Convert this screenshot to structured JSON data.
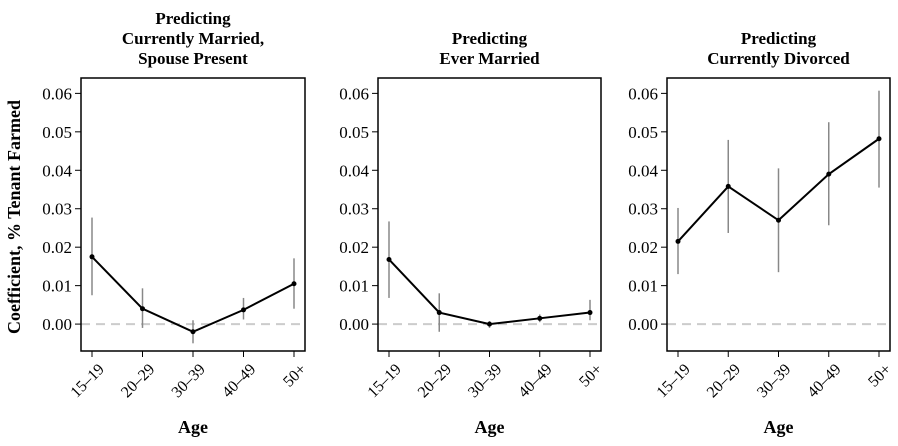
{
  "ylabel": "Coefficient, % Tenant Farmed",
  "chart_data": [
    {
      "type": "line",
      "title": [
        "Predicting",
        "Currently Married,",
        "Spouse Present"
      ],
      "xlabel": "Age",
      "categories": [
        "15–19",
        "20–29",
        "30–39",
        "40–49",
        "50+"
      ],
      "values": [
        0.0175,
        0.004,
        -0.002,
        0.0037,
        0.0105
      ],
      "ci_low": [
        0.0075,
        -0.001,
        -0.005,
        0.0012,
        0.004
      ],
      "ci_high": [
        0.0277,
        0.0093,
        0.001,
        0.0068,
        0.0171
      ],
      "ylim": [
        -0.007,
        0.064
      ],
      "yticks": [
        "0.00",
        "0.01",
        "0.02",
        "0.03",
        "0.04",
        "0.05",
        "0.06"
      ],
      "reference_line": 0,
      "reference_color": "#cccccc",
      "line_color": "#000000",
      "errorbar_color": "#888888"
    },
    {
      "type": "line",
      "title": [
        "Predicting",
        "Ever Married"
      ],
      "xlabel": "Age",
      "categories": [
        "15–19",
        "20–29",
        "30–39",
        "40–49",
        "50+"
      ],
      "values": [
        0.0168,
        0.003,
        0.0,
        0.0015,
        0.003
      ],
      "ci_low": [
        0.0068,
        -0.002,
        -0.001,
        0.0005,
        0.001
      ],
      "ci_high": [
        0.0267,
        0.008,
        0.0008,
        0.0025,
        0.0063
      ],
      "ylim": [
        -0.007,
        0.064
      ],
      "yticks": [
        "0.00",
        "0.01",
        "0.02",
        "0.03",
        "0.04",
        "0.05",
        "0.06"
      ],
      "reference_line": 0,
      "reference_color": "#cccccc",
      "line_color": "#000000",
      "errorbar_color": "#888888"
    },
    {
      "type": "line",
      "title": [
        "Predicting",
        "Currently Divorced"
      ],
      "xlabel": "Age",
      "categories": [
        "15–19",
        "20–29",
        "30–39",
        "40–49",
        "50+"
      ],
      "values": [
        0.0215,
        0.0358,
        0.027,
        0.039,
        0.0482
      ],
      "ci_low": [
        0.013,
        0.0237,
        0.0135,
        0.0257,
        0.0355
      ],
      "ci_high": [
        0.0302,
        0.0479,
        0.0405,
        0.0525,
        0.0607
      ],
      "ylim": [
        -0.007,
        0.064
      ],
      "yticks": [
        "0.00",
        "0.01",
        "0.02",
        "0.03",
        "0.04",
        "0.05",
        "0.06"
      ],
      "reference_line": 0,
      "reference_color": "#cccccc",
      "line_color": "#000000",
      "errorbar_color": "#888888"
    }
  ]
}
